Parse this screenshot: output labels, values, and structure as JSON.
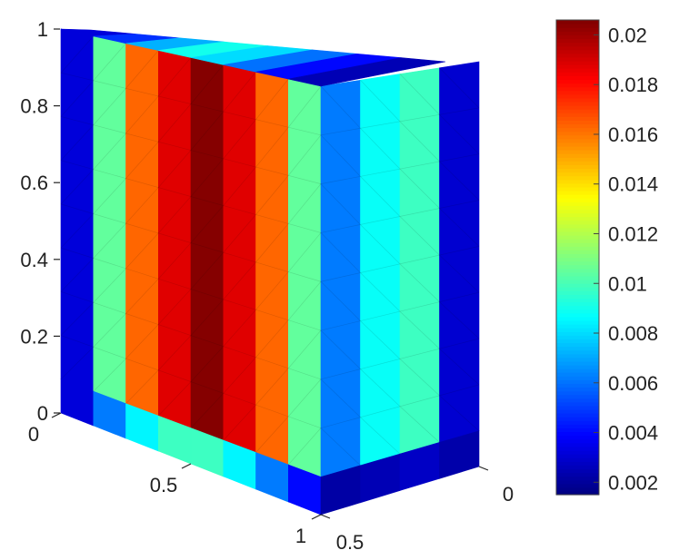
{
  "chart_data": {
    "type": "heatmap",
    "title": "",
    "xlabel": "",
    "ylabel": "",
    "zlabel": "",
    "front_face_column_values": [
      0.0032,
      0.0105,
      0.0163,
      0.0188,
      0.0205,
      0.0188,
      0.0163,
      0.0105
    ],
    "side_face_column_values": [
      0.0062,
      0.0088,
      0.0098,
      0.003
    ],
    "bottom_row_values": [
      0.0032,
      0.0062,
      0.0085,
      0.0098,
      0.0098,
      0.0085,
      0.0062,
      0.004
    ],
    "side_bottom_row_values": [
      0.0022,
      0.0025,
      0.0028,
      0.0023
    ],
    "top_face_values": [
      0.0032,
      0.0048,
      0.0072,
      0.009,
      0.008,
      0.006,
      0.004,
      0.0025
    ],
    "vertical_axis": {
      "ticks": [
        0,
        0.2,
        0.4,
        0.6,
        0.8,
        1
      ],
      "labels": [
        "0",
        "0.2",
        "0.4",
        "0.6",
        "0.8",
        "1"
      ]
    },
    "front_axis": {
      "ticks": [
        0,
        0.5,
        1
      ],
      "labels": [
        "0",
        "0.5",
        "1"
      ]
    },
    "depth_axis": {
      "ticks": [
        0,
        0.5
      ],
      "labels": [
        "0",
        "0.5"
      ]
    },
    "colorbar": {
      "range": [
        0.0015,
        0.0206
      ],
      "ticks": [
        0.002,
        0.004,
        0.006,
        0.008,
        0.01,
        0.012,
        0.014,
        0.016,
        0.018,
        0.02
      ],
      "labels": [
        "0.002",
        "0.004",
        "0.006",
        "0.008",
        "0.01",
        "0.012",
        "0.014",
        "0.016",
        "0.018",
        "0.02"
      ],
      "colormap": "jet"
    },
    "grid": false,
    "mesh_edges": true
  }
}
